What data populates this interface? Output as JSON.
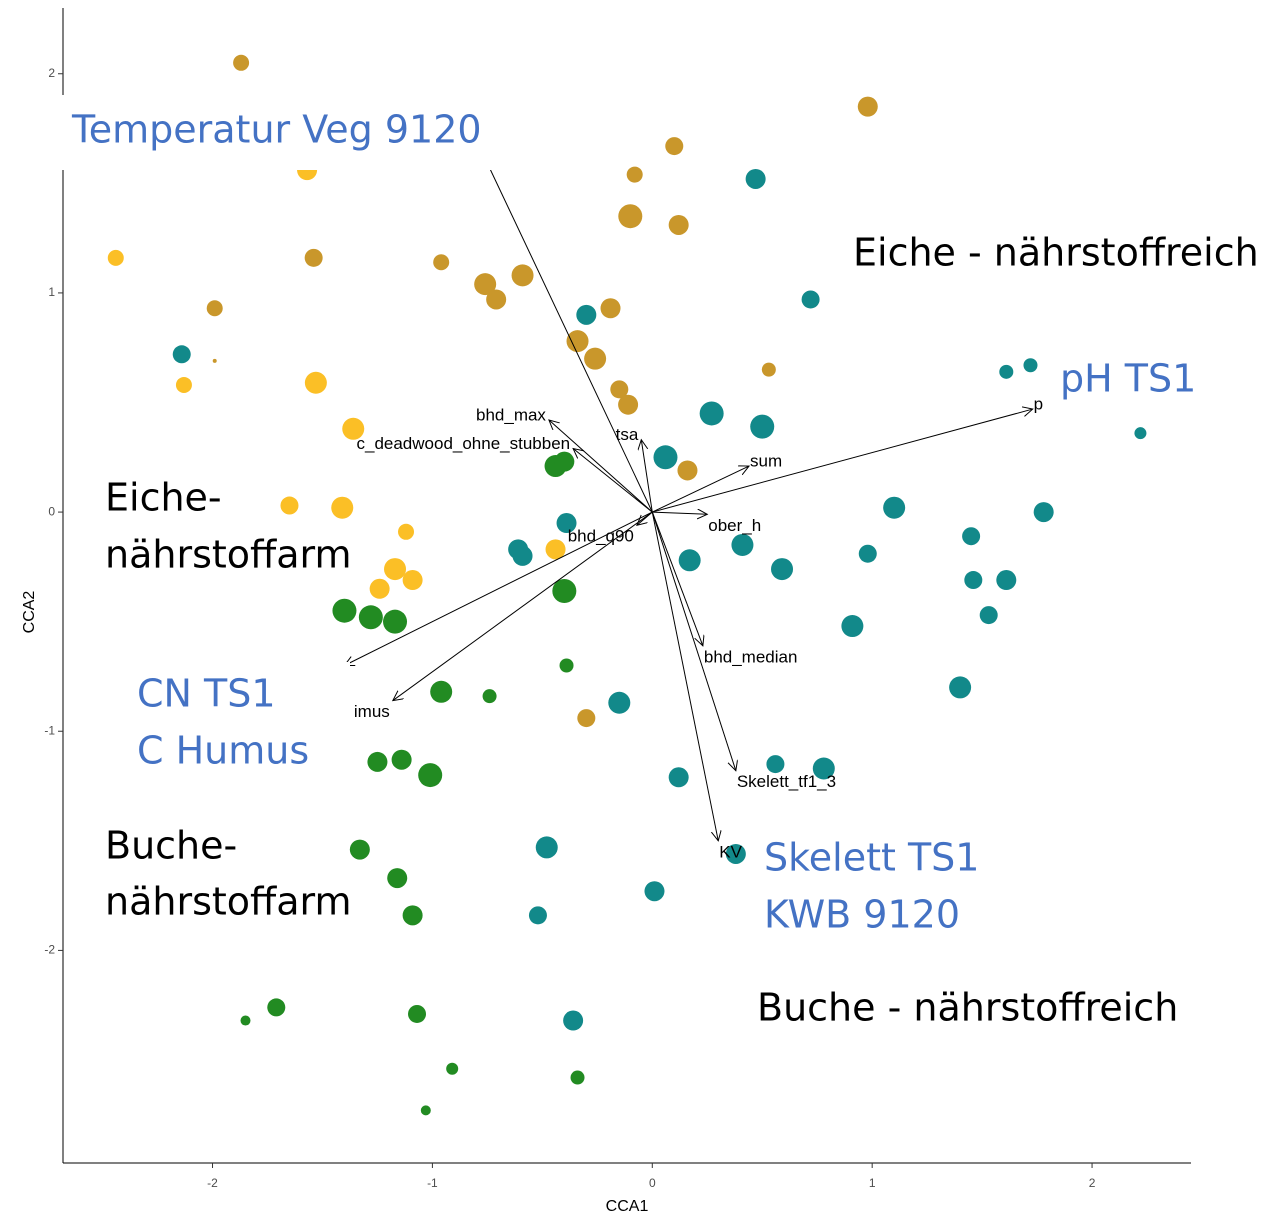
{
  "chart_data": {
    "type": "scatter",
    "xlabel": "CCA1",
    "ylabel": "CCA2",
    "xlim": [
      -2.68,
      2.45
    ],
    "ylim": [
      -2.97,
      2.3
    ],
    "xticks": [
      -2,
      -1,
      0,
      1,
      2
    ],
    "yticks": [
      -2,
      -1,
      0,
      1,
      2
    ],
    "grid": false,
    "series": [
      {
        "color": "#C9972B",
        "x": [
          -1.87,
          0.98,
          0.1,
          -0.08,
          -0.1,
          0.12,
          -1.54,
          -0.96,
          -0.59,
          -0.76,
          -0.71,
          -0.19,
          -1.99,
          -0.34,
          -0.26,
          -1.99,
          0.53,
          -0.15,
          -0.11,
          0.16,
          -0.3
        ],
        "y": [
          2.05,
          1.85,
          1.67,
          1.54,
          1.35,
          1.31,
          1.16,
          1.14,
          1.08,
          1.04,
          0.97,
          0.93,
          0.93,
          0.78,
          0.7,
          0.69,
          0.65,
          0.56,
          0.49,
          0.19,
          -0.94
        ],
        "sizes": [
          8,
          10,
          9,
          8,
          12,
          10,
          9,
          8,
          11,
          11,
          10,
          10,
          8,
          11,
          11,
          2,
          7,
          9,
          10,
          10,
          9
        ]
      },
      {
        "color": "#FBBF26",
        "x": [
          -1.57,
          -2.44,
          -2.13,
          -1.53,
          -1.36,
          -1.65,
          -1.41,
          -1.12,
          -1.17,
          -1.09,
          -1.24,
          -0.44
        ],
        "y": [
          1.56,
          1.16,
          0.58,
          0.59,
          0.38,
          0.03,
          0.02,
          -0.09,
          -0.26,
          -0.31,
          -0.35,
          -0.17
        ],
        "sizes": [
          10,
          8,
          8,
          11,
          11,
          9,
          11,
          8,
          11,
          10,
          10,
          10
        ]
      },
      {
        "color": "#12898A",
        "x": [
          0.47,
          0.72,
          -2.14,
          -0.3,
          1.61,
          1.72,
          2.22,
          0.27,
          0.5,
          0.06,
          1.1,
          1.78,
          -0.39,
          1.45,
          -0.61,
          -0.59,
          0.41,
          0.98,
          0.17,
          0.59,
          1.46,
          1.61,
          1.53,
          0.91,
          1.4,
          -0.15,
          0.56,
          0.78,
          0.12,
          -0.48,
          0.38,
          0.01,
          -0.52,
          -0.36
        ],
        "y": [
          1.52,
          0.97,
          0.72,
          0.9,
          0.64,
          0.67,
          0.36,
          0.45,
          0.39,
          0.25,
          0.02,
          0.0,
          -0.05,
          -0.11,
          -0.17,
          -0.2,
          -0.15,
          -0.19,
          -0.22,
          -0.26,
          -0.31,
          -0.31,
          -0.47,
          -0.52,
          -0.8,
          -0.87,
          -1.15,
          -1.17,
          -1.21,
          -1.53,
          -1.56,
          -1.73,
          -1.84,
          -2.32
        ],
        "sizes": [
          10,
          9,
          9,
          10,
          7,
          7,
          6,
          12,
          12,
          12,
          11,
          10,
          10,
          9,
          10,
          10,
          11,
          9,
          11,
          11,
          9,
          10,
          9,
          11,
          11,
          11,
          9,
          11,
          10,
          11,
          10,
          10,
          9,
          10
        ]
      },
      {
        "color": "#228B22",
        "x": [
          -0.44,
          -0.4,
          -0.4,
          -1.4,
          -1.28,
          -1.17,
          -0.39,
          -0.96,
          -0.74,
          -1.25,
          -1.14,
          -1.01,
          -1.33,
          -1.16,
          -1.09,
          -1.71,
          -1.85,
          -1.07,
          -0.91,
          -0.34,
          -1.03
        ],
        "y": [
          0.21,
          0.23,
          -0.36,
          -0.45,
          -0.48,
          -0.5,
          -0.7,
          -0.82,
          -0.84,
          -1.14,
          -1.13,
          -1.2,
          -1.54,
          -1.67,
          -1.84,
          -2.26,
          -2.32,
          -2.29,
          -2.54,
          -2.58,
          -2.73
        ],
        "sizes": [
          11,
          10,
          12,
          12,
          12,
          12,
          7,
          11,
          7,
          10,
          10,
          12,
          10,
          10,
          10,
          9,
          5,
          9,
          6,
          7,
          5
        ]
      }
    ],
    "arrows": [
      {
        "x": -0.82,
        "y": 1.74
      },
      {
        "label": "bhd_max",
        "x": -0.47,
        "y": 0.42
      },
      {
        "label": "c_deadwood_ohne_stubben",
        "x": -0.36,
        "y": 0.29
      },
      {
        "label": "tsa",
        "x": -0.05,
        "y": 0.33
      },
      {
        "label": "sum",
        "x": 0.44,
        "y": 0.21
      },
      {
        "label": "p",
        "x": 1.73,
        "y": 0.47
      },
      {
        "label": "ober_h",
        "x": 0.25,
        "y": -0.01
      },
      {
        "label": "bhd_q90",
        "x": -0.07,
        "y": -0.06
      },
      {
        "label": "bhd_median",
        "x": 0.23,
        "y": -0.61
      },
      {
        "label": "Skelett_tf1_3",
        "x": 0.38,
        "y": -1.18
      },
      {
        "label": "KV",
        "x": 0.3,
        "y": -1.5
      },
      {
        "label": "imus",
        "x": -1.18,
        "y": -0.86
      },
      {
        "x": -1.4,
        "y": -0.7
      }
    ],
    "annotations": [
      {
        "text": "Temperatur Veg 9120",
        "color": "#4472C4"
      },
      {
        "text": "Eiche - nährstoffreich",
        "color": "#000000"
      },
      {
        "text": "pH TS1",
        "color": "#4472C4"
      },
      {
        "text": "Eiche-",
        "color": "#000000"
      },
      {
        "text": "nährstoffarm",
        "color": "#000000"
      },
      {
        "text": "CN TS1",
        "color": "#4472C4"
      },
      {
        "text": "C Humus",
        "color": "#4472C4"
      },
      {
        "text": "Buche-",
        "color": "#000000"
      },
      {
        "text": "nährstoffarm",
        "color": "#000000"
      },
      {
        "text": "Skelett TS1",
        "color": "#4472C4"
      },
      {
        "text": "KWB 9120",
        "color": "#4472C4"
      },
      {
        "text": "Buche - nährstoffreich",
        "color": "#000000"
      }
    ]
  }
}
